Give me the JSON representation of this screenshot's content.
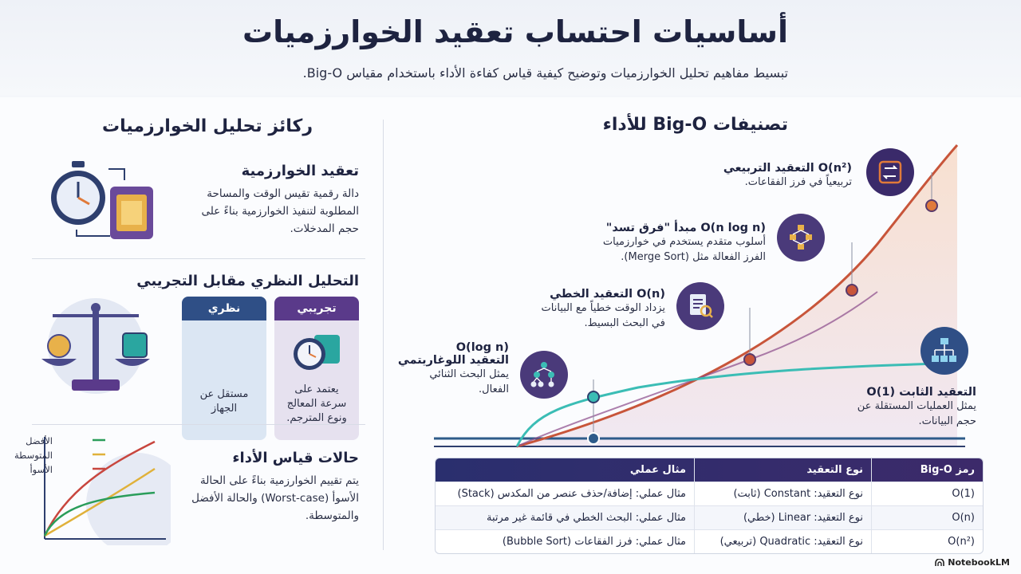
{
  "header": {
    "title": "أساسيات احتساب تعقيد الخوارزميات",
    "subtitle": "تبسيط مفاهيم تحليل الخوارزميات وتوضيح كيفية قياس كفاءة الأداء باستخدام مقياس Big-O."
  },
  "left": {
    "heading": "ركائز تحليل الخوارزميات",
    "complexity": {
      "title": "تعقيد الخوارزمية",
      "desc": [
        "دالة رقمية تقيس الوقت والمساحة",
        "المطلوبة لتنفيذ الخوارزمية بناءً على",
        "حجم المدخلات."
      ]
    },
    "theory": {
      "title": "التحليل النظري مقابل التجريبي",
      "empirical_label": "تجريبي",
      "empirical_text": [
        "يعتمد على",
        "سرعة المعالج",
        "ونوع المترجم."
      ],
      "theoretical_label": "نظري",
      "theoretical_text": [
        "مستقل عن",
        "الجهاز"
      ]
    },
    "cases": {
      "title": "حالات قياس الأداء",
      "desc": [
        "يتم تقييم الخوارزمية بناءً على الحالة",
        "الأسوأ (Worst-case) والحالة الأفضل",
        "والمتوسطة."
      ],
      "legend": [
        "الأفضل",
        "المتوسطة",
        "الأسوأ"
      ],
      "legend_colors": [
        "#2a9d5a",
        "#e0b13a",
        "#c8463e"
      ]
    }
  },
  "right": {
    "heading": "تصنيفات Big-O للأداء",
    "classes": {
      "quadratic": {
        "title": "O(n²) التعقيد التربيعي",
        "desc": [
          "تربيعياً في فرز الفقاعات."
        ],
        "icon": "refresh-square-icon"
      },
      "nlogn": {
        "title": "O(n log n) مبدأ \"فرق تسد\"",
        "desc": [
          "أسلوب متقدم يستخدم في خوارزميات",
          "الفرز الفعالة مثل (Merge Sort)."
        ],
        "icon": "merge-diagram-icon"
      },
      "linear": {
        "title": "O(n) التعقيد الخطي",
        "desc": [
          "يزداد الوقت خطياً مع البيانات",
          "في البحث البسيط."
        ],
        "icon": "document-search-icon"
      },
      "log": {
        "title1": "O(log n)",
        "title2": "التعقيد اللوغاريتمي",
        "desc": [
          "يمثل البحث الثنائي",
          "الفعال."
        ],
        "icon": "binary-tree-icon"
      },
      "constant": {
        "title": "التعقيد الثابت O(1)",
        "desc": [
          "يمثل العمليات المستقلة عن",
          "حجم البيانات."
        ],
        "icon": "hierarchy-icon"
      }
    },
    "colors": {
      "quadratic": "#e07a3a",
      "linear_curve": "#8a4a8a",
      "log_curve": "#3bbdb5",
      "constant": "#2e5b8a"
    }
  },
  "table": {
    "headers": [
      "رمز Big-O",
      "نوع التعقيد",
      "مثال عملي"
    ],
    "rows": [
      [
        "O(1)",
        "نوع التعقيد: Constant (ثابت)",
        "مثال عملي: إضافة/حذف عنصر من المكدس (Stack)"
      ],
      [
        "O(n)",
        "نوع التعقيد: Linear (خطي)",
        "مثال عملي: البحث الخطي في قائمة غير مرتبة"
      ],
      [
        "O(n²)",
        "نوع التعقيد: Quadratic (تربيعي)",
        "مثال عملي: فرز الفقاعات (Bubble Sort)"
      ]
    ]
  },
  "brand": "NotebookLM"
}
